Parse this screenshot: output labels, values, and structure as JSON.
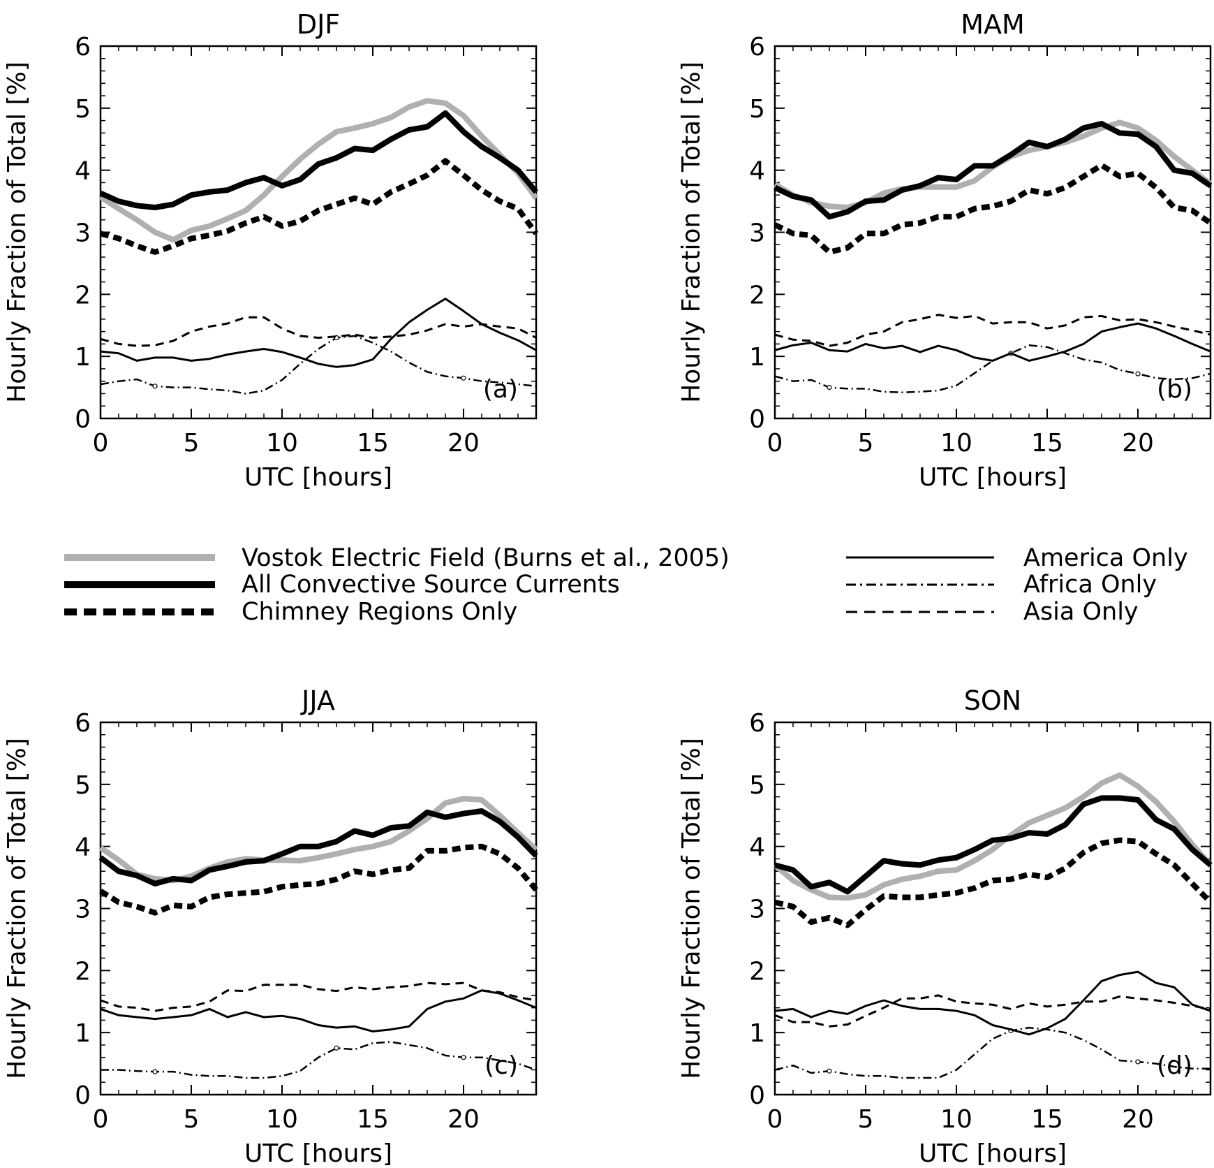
{
  "figure": {
    "xlabel": "UTC [hours]",
    "ylabel": "Hourly Fraction of Total [%]",
    "legend": {
      "placement": "center",
      "entries": [
        {
          "key": "vostok",
          "label": "Vostok Electric Field (Burns et al., 2005)"
        },
        {
          "key": "all",
          "label": "All Convective Source Currents"
        },
        {
          "key": "chimney",
          "label": "Chimney Regions Only"
        },
        {
          "key": "america",
          "label": "America Only"
        },
        {
          "key": "africa",
          "label": "Africa Only"
        },
        {
          "key": "asia",
          "label": "Asia Only"
        }
      ]
    },
    "series_styles": {
      "vostok": {
        "color": "#b0b0b0",
        "style": "solid-thick"
      },
      "all": {
        "color": "#000000",
        "style": "solid-thick"
      },
      "chimney": {
        "color": "#000000",
        "style": "dashed-thick"
      },
      "america": {
        "color": "#000000",
        "style": "solid-thin"
      },
      "africa": {
        "color": "#000000",
        "style": "dash-dot-thin"
      },
      "asia": {
        "color": "#000000",
        "style": "dashed-thin"
      }
    }
  },
  "chart_data": [
    {
      "type": "line",
      "title": "DJF",
      "panel_label": "(a)",
      "xlabel": "UTC [hours]",
      "ylabel": "Hourly Fraction of Total [%]",
      "xlim": [
        0,
        24
      ],
      "ylim": [
        0,
        6
      ],
      "xticks": [
        0,
        5,
        10,
        15,
        20
      ],
      "yticks": [
        0,
        1,
        2,
        3,
        4,
        5,
        6
      ],
      "grid": false,
      "x": [
        0,
        1,
        2,
        3,
        4,
        5,
        6,
        7,
        8,
        9,
        10,
        11,
        12,
        13,
        14,
        15,
        16,
        17,
        18,
        19,
        20,
        21,
        22,
        23,
        24
      ],
      "series": [
        {
          "name": "Vostok Electric Field (Burns et al., 2005)",
          "key": "vostok",
          "values": [
            3.57,
            3.38,
            3.2,
            3.0,
            2.88,
            3.03,
            3.1,
            3.22,
            3.35,
            3.6,
            3.9,
            4.18,
            4.42,
            4.62,
            4.68,
            4.75,
            4.85,
            5.02,
            5.12,
            5.08,
            4.88,
            4.55,
            4.25,
            3.95,
            3.55
          ]
        },
        {
          "name": "All Convective Source Currents",
          "key": "all",
          "values": [
            3.63,
            3.5,
            3.43,
            3.4,
            3.45,
            3.6,
            3.65,
            3.68,
            3.8,
            3.88,
            3.75,
            3.85,
            4.1,
            4.2,
            4.35,
            4.32,
            4.5,
            4.65,
            4.7,
            4.92,
            4.62,
            4.38,
            4.2,
            4.0,
            3.65
          ]
        },
        {
          "name": "Chimney Regions Only",
          "key": "chimney",
          "values": [
            2.98,
            2.9,
            2.78,
            2.68,
            2.78,
            2.9,
            2.95,
            3.02,
            3.15,
            3.25,
            3.1,
            3.18,
            3.35,
            3.45,
            3.55,
            3.45,
            3.65,
            3.78,
            3.92,
            4.15,
            3.92,
            3.68,
            3.5,
            3.38,
            2.98
          ]
        },
        {
          "name": "America Only",
          "key": "america",
          "values": [
            1.08,
            1.05,
            0.93,
            0.98,
            0.98,
            0.93,
            0.96,
            1.03,
            1.08,
            1.12,
            1.07,
            0.98,
            0.88,
            0.83,
            0.86,
            0.95,
            1.28,
            1.55,
            1.75,
            1.93,
            1.73,
            1.52,
            1.38,
            1.26,
            1.1
          ]
        },
        {
          "name": "Africa Only",
          "key": "africa",
          "values": [
            0.55,
            0.6,
            0.63,
            0.52,
            0.5,
            0.5,
            0.47,
            0.45,
            0.4,
            0.45,
            0.62,
            0.88,
            1.12,
            1.3,
            1.33,
            1.22,
            1.08,
            0.9,
            0.75,
            0.68,
            0.65,
            0.6,
            0.58,
            0.55,
            0.52
          ]
        },
        {
          "name": "Asia Only",
          "key": "asia",
          "values": [
            1.28,
            1.2,
            1.17,
            1.18,
            1.25,
            1.4,
            1.48,
            1.53,
            1.63,
            1.63,
            1.45,
            1.33,
            1.3,
            1.32,
            1.35,
            1.3,
            1.32,
            1.35,
            1.42,
            1.52,
            1.48,
            1.52,
            1.48,
            1.45,
            1.3
          ]
        }
      ]
    },
    {
      "type": "line",
      "title": "MAM",
      "panel_label": "(b)",
      "xlabel": "UTC [hours]",
      "ylabel": "Hourly Fraction of Total [%]",
      "xlim": [
        0,
        24
      ],
      "ylim": [
        0,
        6
      ],
      "xticks": [
        0,
        5,
        10,
        15,
        20
      ],
      "yticks": [
        0,
        1,
        2,
        3,
        4,
        5,
        6
      ],
      "grid": false,
      "x": [
        0,
        1,
        2,
        3,
        4,
        5,
        6,
        7,
        8,
        9,
        10,
        11,
        12,
        13,
        14,
        15,
        16,
        17,
        18,
        19,
        20,
        21,
        22,
        23,
        24
      ],
      "series": [
        {
          "name": "Vostok Electric Field (Burns et al., 2005)",
          "key": "vostok",
          "values": [
            3.77,
            3.6,
            3.48,
            3.42,
            3.4,
            3.48,
            3.63,
            3.7,
            3.73,
            3.73,
            3.73,
            3.83,
            4.05,
            4.22,
            4.32,
            4.38,
            4.45,
            4.55,
            4.68,
            4.77,
            4.68,
            4.48,
            4.22,
            4.0,
            3.78
          ]
        },
        {
          "name": "All Convective Source Currents",
          "key": "all",
          "values": [
            3.72,
            3.58,
            3.52,
            3.25,
            3.33,
            3.5,
            3.52,
            3.68,
            3.75,
            3.88,
            3.85,
            4.07,
            4.07,
            4.25,
            4.45,
            4.38,
            4.5,
            4.68,
            4.75,
            4.6,
            4.58,
            4.38,
            4.0,
            3.95,
            3.75
          ]
        },
        {
          "name": "Chimney Regions Only",
          "key": "chimney",
          "values": [
            3.12,
            2.98,
            2.95,
            2.68,
            2.75,
            2.98,
            2.98,
            3.12,
            3.15,
            3.25,
            3.25,
            3.38,
            3.42,
            3.5,
            3.68,
            3.62,
            3.72,
            3.9,
            4.08,
            3.9,
            3.95,
            3.72,
            3.4,
            3.35,
            3.15
          ]
        },
        {
          "name": "America Only",
          "key": "america",
          "values": [
            1.1,
            1.18,
            1.22,
            1.1,
            1.08,
            1.2,
            1.13,
            1.17,
            1.07,
            1.17,
            1.1,
            0.98,
            0.93,
            1.05,
            0.93,
            1.0,
            1.08,
            1.2,
            1.4,
            1.47,
            1.53,
            1.45,
            1.33,
            1.2,
            1.08
          ]
        },
        {
          "name": "Africa Only",
          "key": "africa",
          "values": [
            0.68,
            0.6,
            0.62,
            0.5,
            0.48,
            0.48,
            0.43,
            0.42,
            0.43,
            0.45,
            0.53,
            0.73,
            0.93,
            1.05,
            1.18,
            1.15,
            1.05,
            0.95,
            0.9,
            0.78,
            0.72,
            0.65,
            0.63,
            0.65,
            0.72
          ]
        },
        {
          "name": "Asia Only",
          "key": "asia",
          "values": [
            1.35,
            1.27,
            1.25,
            1.17,
            1.22,
            1.35,
            1.4,
            1.55,
            1.6,
            1.67,
            1.62,
            1.65,
            1.53,
            1.55,
            1.55,
            1.45,
            1.5,
            1.63,
            1.65,
            1.58,
            1.6,
            1.55,
            1.48,
            1.42,
            1.35
          ]
        }
      ]
    },
    {
      "type": "line",
      "title": "JJA",
      "panel_label": "(c)",
      "xlabel": "UTC [hours]",
      "ylabel": "Hourly Fraction of Total [%]",
      "xlim": [
        0,
        24
      ],
      "ylim": [
        0,
        6
      ],
      "xticks": [
        0,
        5,
        10,
        15,
        20
      ],
      "yticks": [
        0,
        1,
        2,
        3,
        4,
        5,
        6
      ],
      "grid": false,
      "x": [
        0,
        1,
        2,
        3,
        4,
        5,
        6,
        7,
        8,
        9,
        10,
        11,
        12,
        13,
        14,
        15,
        16,
        17,
        18,
        19,
        20,
        21,
        22,
        23,
        24
      ],
      "series": [
        {
          "name": "Vostok Electric Field (Burns et al., 2005)",
          "key": "vostok",
          "values": [
            3.98,
            3.78,
            3.55,
            3.48,
            3.45,
            3.52,
            3.65,
            3.75,
            3.8,
            3.78,
            3.78,
            3.77,
            3.82,
            3.88,
            3.95,
            4.0,
            4.08,
            4.25,
            4.45,
            4.7,
            4.77,
            4.75,
            4.5,
            4.22,
            3.95
          ]
        },
        {
          "name": "All Convective Source Currents",
          "key": "all",
          "values": [
            3.82,
            3.6,
            3.53,
            3.4,
            3.48,
            3.45,
            3.62,
            3.68,
            3.75,
            3.77,
            3.88,
            4.0,
            4.0,
            4.08,
            4.25,
            4.18,
            4.3,
            4.33,
            4.55,
            4.47,
            4.53,
            4.57,
            4.4,
            4.15,
            3.85
          ]
        },
        {
          "name": "Chimney Regions Only",
          "key": "chimney",
          "values": [
            3.28,
            3.1,
            3.03,
            2.93,
            3.05,
            3.03,
            3.18,
            3.23,
            3.25,
            3.27,
            3.35,
            3.38,
            3.4,
            3.47,
            3.6,
            3.55,
            3.62,
            3.65,
            3.93,
            3.93,
            3.98,
            4.0,
            3.88,
            3.65,
            3.3
          ]
        },
        {
          "name": "America Only",
          "key": "america",
          "values": [
            1.38,
            1.28,
            1.25,
            1.22,
            1.25,
            1.28,
            1.38,
            1.25,
            1.33,
            1.25,
            1.27,
            1.22,
            1.12,
            1.08,
            1.1,
            1.02,
            1.05,
            1.1,
            1.38,
            1.5,
            1.55,
            1.68,
            1.63,
            1.52,
            1.4
          ]
        },
        {
          "name": "Africa Only",
          "key": "africa",
          "values": [
            0.4,
            0.4,
            0.38,
            0.37,
            0.37,
            0.32,
            0.3,
            0.3,
            0.27,
            0.27,
            0.3,
            0.38,
            0.6,
            0.75,
            0.73,
            0.83,
            0.85,
            0.8,
            0.75,
            0.63,
            0.6,
            0.6,
            0.55,
            0.5,
            0.4
          ]
        },
        {
          "name": "Asia Only",
          "key": "asia",
          "values": [
            1.52,
            1.42,
            1.4,
            1.35,
            1.4,
            1.42,
            1.5,
            1.68,
            1.67,
            1.77,
            1.77,
            1.77,
            1.7,
            1.67,
            1.73,
            1.7,
            1.73,
            1.75,
            1.8,
            1.78,
            1.8,
            1.68,
            1.65,
            1.57,
            1.52
          ]
        }
      ]
    },
    {
      "type": "line",
      "title": "SON",
      "panel_label": "(d)",
      "xlabel": "UTC [hours]",
      "ylabel": "Hourly Fraction of Total [%]",
      "xlim": [
        0,
        24
      ],
      "ylim": [
        0,
        6
      ],
      "xticks": [
        0,
        5,
        10,
        15,
        20
      ],
      "yticks": [
        0,
        1,
        2,
        3,
        4,
        5,
        6
      ],
      "grid": false,
      "x": [
        0,
        1,
        2,
        3,
        4,
        5,
        6,
        7,
        8,
        9,
        10,
        11,
        12,
        13,
        14,
        15,
        16,
        17,
        18,
        19,
        20,
        21,
        22,
        23,
        24
      ],
      "series": [
        {
          "name": "Vostok Electric Field (Burns et al., 2005)",
          "key": "vostok",
          "values": [
            3.7,
            3.45,
            3.3,
            3.18,
            3.17,
            3.22,
            3.38,
            3.47,
            3.52,
            3.6,
            3.62,
            3.77,
            3.95,
            4.18,
            4.38,
            4.5,
            4.62,
            4.8,
            5.02,
            5.15,
            4.97,
            4.72,
            4.4,
            4.03,
            3.7
          ]
        },
        {
          "name": "All Convective Source Currents",
          "key": "all",
          "values": [
            3.7,
            3.62,
            3.35,
            3.42,
            3.27,
            3.52,
            3.77,
            3.72,
            3.7,
            3.78,
            3.82,
            3.95,
            4.1,
            4.13,
            4.22,
            4.2,
            4.35,
            4.68,
            4.78,
            4.78,
            4.75,
            4.43,
            4.28,
            3.95,
            3.7
          ]
        },
        {
          "name": "Chimney Regions Only",
          "key": "chimney",
          "values": [
            3.1,
            3.03,
            2.78,
            2.85,
            2.73,
            2.98,
            3.2,
            3.18,
            3.18,
            3.22,
            3.25,
            3.33,
            3.45,
            3.47,
            3.55,
            3.5,
            3.65,
            3.9,
            4.05,
            4.1,
            4.08,
            3.88,
            3.7,
            3.4,
            3.1
          ]
        },
        {
          "name": "America Only",
          "key": "america",
          "values": [
            1.35,
            1.38,
            1.25,
            1.35,
            1.3,
            1.43,
            1.52,
            1.43,
            1.38,
            1.38,
            1.35,
            1.28,
            1.12,
            1.05,
            0.97,
            1.07,
            1.22,
            1.52,
            1.83,
            1.93,
            1.98,
            1.8,
            1.73,
            1.45,
            1.35
          ]
        },
        {
          "name": "Africa Only",
          "key": "africa",
          "values": [
            0.4,
            0.47,
            0.35,
            0.38,
            0.33,
            0.3,
            0.3,
            0.27,
            0.27,
            0.27,
            0.4,
            0.65,
            0.9,
            1.03,
            1.08,
            1.05,
            1.0,
            0.88,
            0.73,
            0.55,
            0.53,
            0.5,
            0.45,
            0.42,
            0.42
          ]
        },
        {
          "name": "Asia Only",
          "key": "asia",
          "values": [
            1.28,
            1.17,
            1.17,
            1.1,
            1.13,
            1.27,
            1.4,
            1.55,
            1.55,
            1.6,
            1.5,
            1.47,
            1.45,
            1.38,
            1.47,
            1.42,
            1.45,
            1.5,
            1.5,
            1.58,
            1.55,
            1.52,
            1.48,
            1.43,
            1.38
          ]
        }
      ]
    }
  ]
}
